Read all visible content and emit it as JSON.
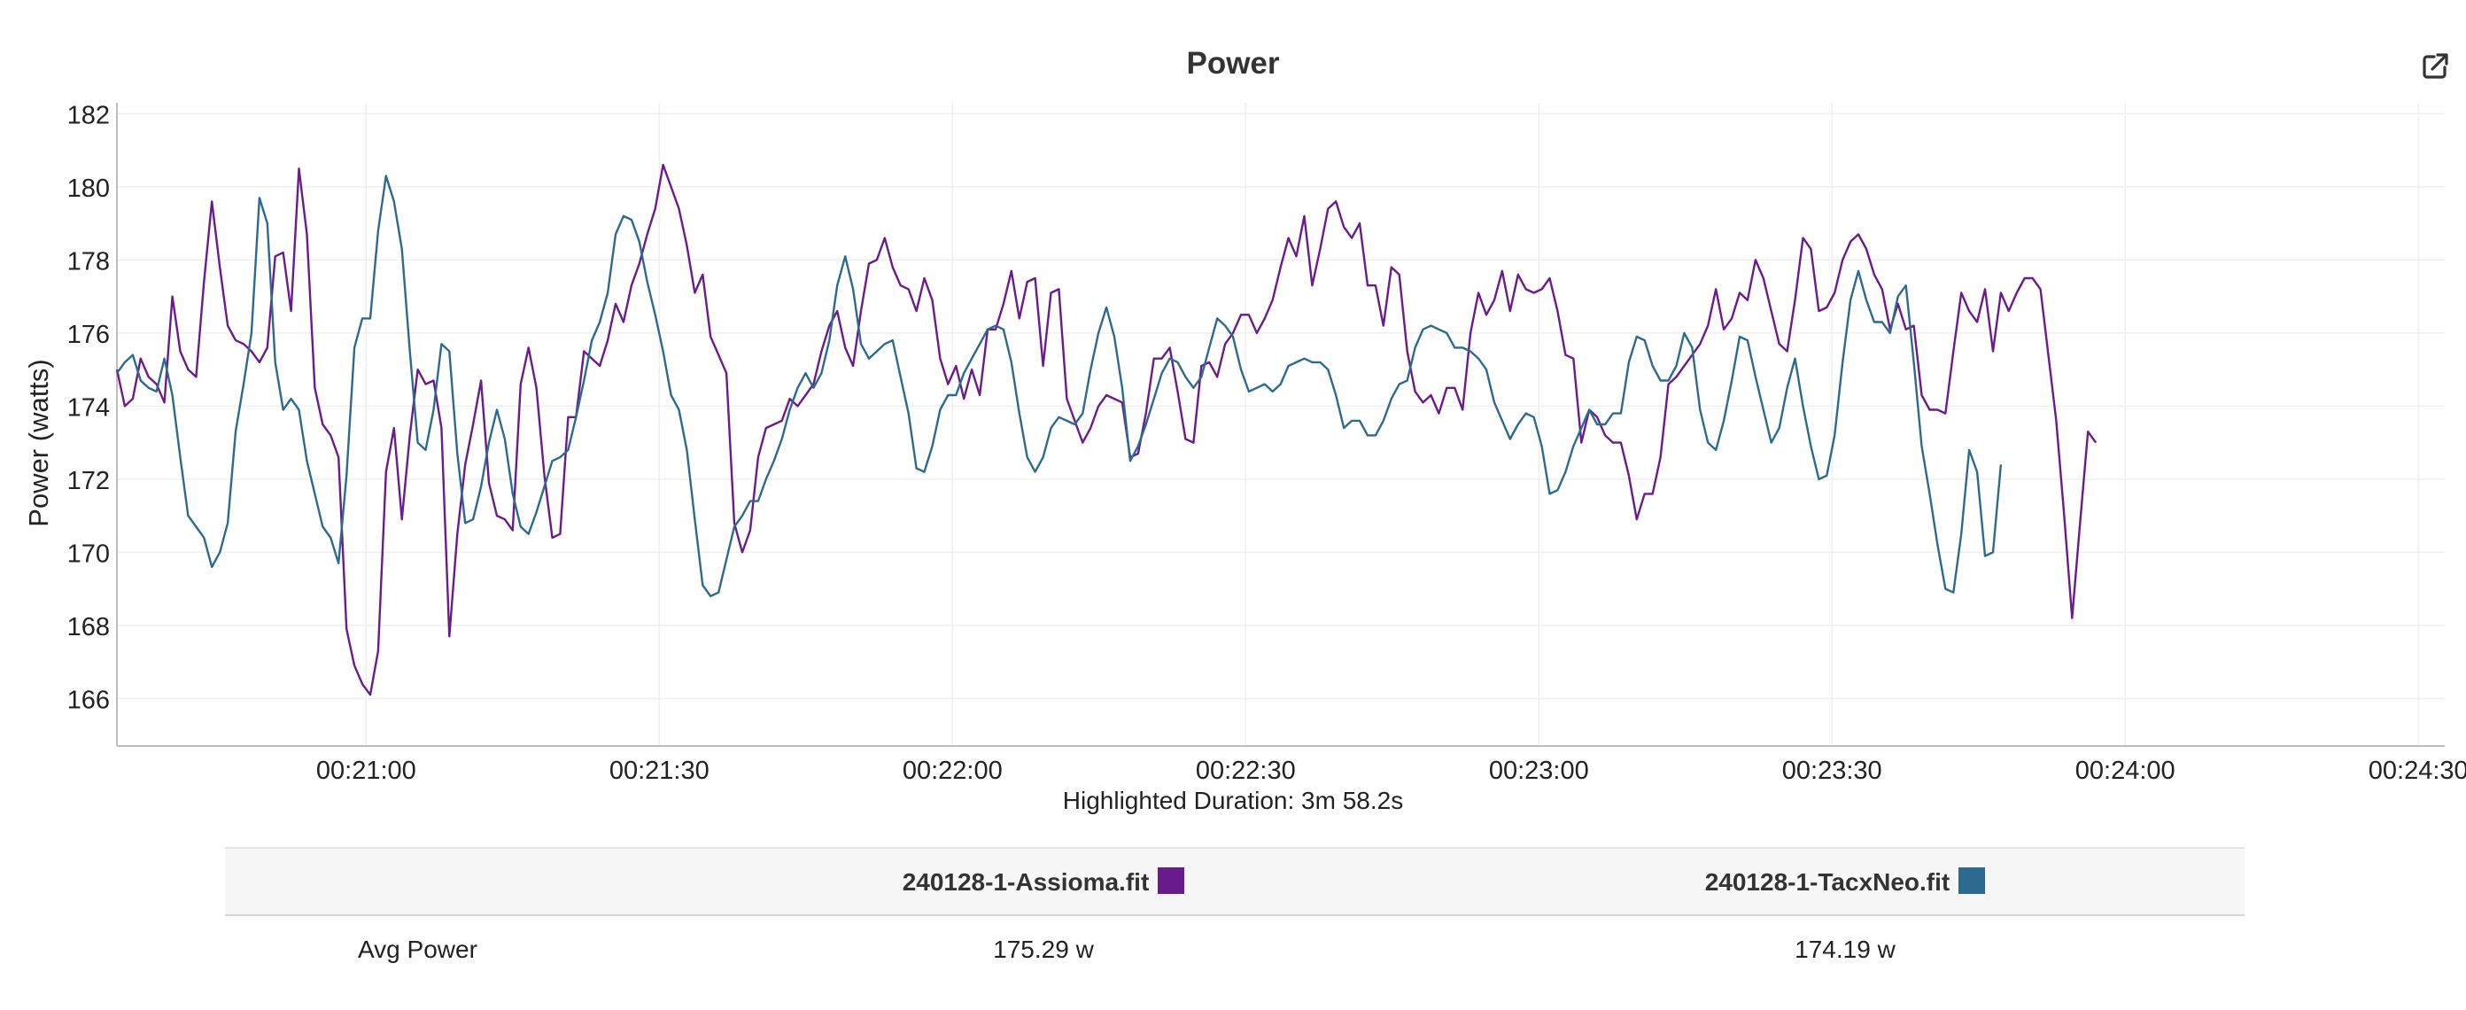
{
  "chart_data": {
    "type": "line",
    "title": "Power",
    "ylabel": "Power (watts)",
    "xlabel": "",
    "x_axis": {
      "unit": "seconds",
      "min_seconds": 1234.5,
      "max_seconds": 1472.7,
      "ticks": [
        {
          "seconds": 1260,
          "label": "00:21:00"
        },
        {
          "seconds": 1290,
          "label": "00:21:30"
        },
        {
          "seconds": 1320,
          "label": "00:22:00"
        },
        {
          "seconds": 1350,
          "label": "00:22:30"
        },
        {
          "seconds": 1380,
          "label": "00:23:00"
        },
        {
          "seconds": 1410,
          "label": "00:23:30"
        },
        {
          "seconds": 1440,
          "label": "00:24:00"
        },
        {
          "seconds": 1470,
          "label": "00:24:30"
        }
      ]
    },
    "y_axis": {
      "min": 164.7,
      "max": 182.3,
      "ticks": [
        166,
        168,
        170,
        172,
        174,
        176,
        178,
        180,
        182
      ]
    },
    "grid": true,
    "legend": "table-below",
    "series": [
      {
        "name": "240128-1-Assioma.fit",
        "color": "#6a1b8c",
        "x_start_seconds": 1234.5,
        "x_step_seconds": 0.81,
        "values": [
          175.0,
          174.0,
          174.2,
          175.3,
          174.8,
          174.6,
          174.1,
          177.0,
          175.5,
          175.0,
          174.8,
          177.4,
          179.6,
          177.8,
          176.2,
          175.8,
          175.7,
          175.5,
          175.2,
          175.6,
          178.1,
          178.2,
          176.6,
          180.5,
          178.7,
          174.5,
          173.5,
          173.2,
          172.6,
          167.9,
          166.9,
          166.4,
          166.1,
          167.3,
          172.2,
          173.4,
          170.9,
          173.2,
          175.0,
          174.6,
          174.7,
          173.4,
          167.7,
          170.5,
          172.4,
          173.5,
          174.7,
          171.9,
          171.0,
          170.9,
          170.6,
          174.6,
          175.6,
          174.5,
          172.1,
          170.4,
          170.5,
          173.7,
          173.7,
          175.5,
          175.3,
          175.1,
          175.8,
          176.8,
          176.3,
          177.3,
          177.9,
          178.7,
          179.4,
          180.6,
          180.0,
          179.4,
          178.4,
          177.1,
          177.6,
          175.9,
          175.4,
          174.9,
          170.8,
          170.0,
          170.6,
          172.6,
          173.4,
          173.5,
          173.6,
          174.2,
          174.0,
          174.3,
          174.6,
          175.5,
          176.2,
          176.6,
          175.6,
          175.1,
          176.6,
          177.9,
          178.0,
          178.6,
          177.8,
          177.3,
          177.2,
          176.6,
          177.5,
          176.9,
          175.3,
          174.6,
          175.1,
          174.2,
          175.0,
          174.3,
          176.1,
          176.1,
          176.8,
          177.7,
          176.4,
          177.4,
          177.5,
          175.1,
          177.1,
          177.2,
          174.2,
          173.6,
          173.0,
          173.4,
          174.0,
          174.3,
          174.2,
          174.1,
          172.6,
          172.7,
          173.8,
          175.3,
          175.3,
          175.6,
          174.4,
          173.1,
          173.0,
          175.1,
          175.2,
          174.8,
          175.7,
          176.0,
          176.5,
          176.5,
          176.0,
          176.4,
          176.9,
          177.8,
          178.6,
          178.1,
          179.2,
          177.3,
          178.3,
          179.4,
          179.6,
          178.9,
          178.6,
          179.0,
          177.3,
          177.3,
          176.2,
          177.8,
          177.6,
          175.5,
          174.4,
          174.1,
          174.3,
          173.8,
          174.5,
          174.5,
          173.9,
          176.0,
          177.1,
          176.5,
          176.9,
          177.7,
          176.6,
          177.6,
          177.2,
          177.1,
          177.2,
          177.5,
          176.6,
          175.4,
          175.3,
          173.0,
          173.9,
          173.7,
          173.2,
          173.0,
          173.0,
          172.1,
          170.9,
          171.6,
          171.6,
          172.6,
          174.6,
          174.8,
          175.1,
          175.4,
          175.7,
          176.2,
          177.2,
          176.1,
          176.4,
          177.1,
          176.9,
          178.0,
          177.5,
          176.6,
          175.7,
          175.5,
          176.9,
          178.6,
          178.3,
          176.6,
          176.7,
          177.1,
          178.0,
          178.5,
          178.7,
          178.3,
          177.6,
          177.2,
          176.1,
          176.8,
          176.1,
          176.2,
          174.3,
          173.9,
          173.9,
          173.8,
          175.5,
          177.1,
          176.6,
          176.3,
          177.2,
          175.5,
          177.1,
          176.6,
          177.1,
          177.5,
          177.5,
          177.2,
          175.4,
          173.6,
          171.0,
          168.2,
          170.8,
          173.3,
          173.0
        ]
      },
      {
        "name": "240128-1-TacxNeo.fit",
        "color": "#2d6a8f",
        "x_start_seconds": 1234.5,
        "x_step_seconds": 0.81,
        "values": [
          174.9,
          175.2,
          175.4,
          174.7,
          174.5,
          174.4,
          175.3,
          174.3,
          172.6,
          171.0,
          170.7,
          170.4,
          169.6,
          170.0,
          170.8,
          173.3,
          174.6,
          176.0,
          179.7,
          179.0,
          175.2,
          173.9,
          174.2,
          173.9,
          172.5,
          171.6,
          170.7,
          170.4,
          169.7,
          172.1,
          175.6,
          176.4,
          176.4,
          178.8,
          180.3,
          179.6,
          178.3,
          175.5,
          173.0,
          172.8,
          173.9,
          175.7,
          175.5,
          172.7,
          170.8,
          170.9,
          171.8,
          173.0,
          173.9,
          173.1,
          171.6,
          170.7,
          170.5,
          171.1,
          171.8,
          172.5,
          172.6,
          172.8,
          173.7,
          174.7,
          175.8,
          176.3,
          177.1,
          178.7,
          179.2,
          179.1,
          178.5,
          177.4,
          176.5,
          175.5,
          174.3,
          173.9,
          172.8,
          170.9,
          169.1,
          168.8,
          168.9,
          169.8,
          170.7,
          171.0,
          171.4,
          171.4,
          172.0,
          172.5,
          173.1,
          173.9,
          174.5,
          174.9,
          174.5,
          174.9,
          175.8,
          177.3,
          178.1,
          177.2,
          175.7,
          175.3,
          175.5,
          175.7,
          175.8,
          174.8,
          173.8,
          172.3,
          172.2,
          172.9,
          173.9,
          174.3,
          174.3,
          174.9,
          175.3,
          175.7,
          176.1,
          176.2,
          176.1,
          175.2,
          173.8,
          172.6,
          172.2,
          172.6,
          173.4,
          173.7,
          173.6,
          173.5,
          173.8,
          175.0,
          176.0,
          176.7,
          175.9,
          174.5,
          172.5,
          172.9,
          173.5,
          174.2,
          174.9,
          175.3,
          175.2,
          174.8,
          174.5,
          174.8,
          175.6,
          176.4,
          176.2,
          175.9,
          175.0,
          174.4,
          174.5,
          174.6,
          174.4,
          174.6,
          175.1,
          175.2,
          175.3,
          175.2,
          175.2,
          175.0,
          174.3,
          173.4,
          173.6,
          173.6,
          173.2,
          173.2,
          173.6,
          174.2,
          174.6,
          174.7,
          175.6,
          176.1,
          176.2,
          176.1,
          176.0,
          175.6,
          175.6,
          175.5,
          175.3,
          175.0,
          174.1,
          173.6,
          173.1,
          173.5,
          173.8,
          173.7,
          172.9,
          171.6,
          171.7,
          172.2,
          172.9,
          173.4,
          173.9,
          173.5,
          173.5,
          173.8,
          173.8,
          175.2,
          175.9,
          175.8,
          175.1,
          174.7,
          174.7,
          175.1,
          176.0,
          175.6,
          173.9,
          173.0,
          172.8,
          173.6,
          174.7,
          175.9,
          175.8,
          174.8,
          173.9,
          173.0,
          173.4,
          174.5,
          175.3,
          174.0,
          172.9,
          172.0,
          172.1,
          173.2,
          175.2,
          176.9,
          177.7,
          176.9,
          176.3,
          176.3,
          176.0,
          177.0,
          177.3,
          175.2,
          172.9,
          171.6,
          170.2,
          169.0,
          168.9,
          170.5,
          172.8,
          172.2,
          169.9,
          170.0,
          172.4
        ]
      }
    ]
  },
  "footer": {
    "duration_text": "Highlighted Duration: 3m 58.2s"
  },
  "table": {
    "columns": [
      {
        "name": "240128-1-Assioma.fit",
        "color": "#6a1b8c"
      },
      {
        "name": "240128-1-TacxNeo.fit",
        "color": "#2d6a8f"
      }
    ],
    "rows": [
      {
        "label": "Avg Power",
        "values": [
          "175.29 w",
          "174.19 w"
        ]
      }
    ]
  },
  "icons": {
    "export": "external-link-icon"
  }
}
